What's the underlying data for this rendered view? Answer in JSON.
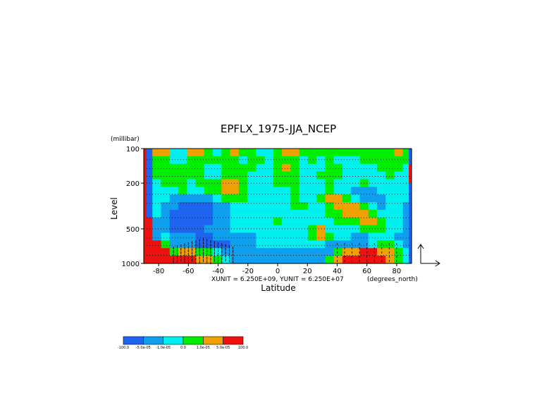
{
  "chart_data": {
    "type": "heatmap",
    "title": "EPFLX_1975-JJA_NCEP",
    "xlabel": "Latitude",
    "ylabel": "Level",
    "y_units": "(millibar)",
    "x_units": "(degrees_north)",
    "vector_units": "XUNIT = 6.250E+09, YUNIT = 6.250E+07",
    "xlim": [
      -90,
      90
    ],
    "ylim": [
      1000,
      100
    ],
    "y_scale": "log",
    "x_ticks": [
      {
        "value": -80,
        "label": "-80"
      },
      {
        "value": -60,
        "label": "-60"
      },
      {
        "value": -40,
        "label": "-40"
      },
      {
        "value": -20,
        "label": "-20"
      },
      {
        "value": 0,
        "label": "0"
      },
      {
        "value": 20,
        "label": "20"
      },
      {
        "value": 40,
        "label": "40"
      },
      {
        "value": 60,
        "label": "60"
      },
      {
        "value": 80,
        "label": "80"
      }
    ],
    "y_ticks": [
      {
        "value": 100,
        "label": "100"
      },
      {
        "value": 200,
        "label": "200"
      },
      {
        "value": 500,
        "label": "500"
      },
      {
        "value": 1000,
        "label": "1000"
      }
    ],
    "colorbar": {
      "labels": [
        "-100.0",
        "-5.0e-05",
        "-1.0e-05",
        "0.0",
        "1.0e-05",
        "5.0e-05",
        "100.0"
      ],
      "colors": [
        "#1e64f0",
        "#0ea0ee",
        "#00f0f0",
        "#00ee00",
        "#f0a000",
        "#f01010"
      ]
    },
    "z_grid": [
      [
        0,
        4,
        4,
        2,
        2,
        4,
        4,
        3,
        2,
        3,
        4,
        3,
        3,
        2,
        2,
        3,
        4,
        4,
        3,
        3,
        3,
        3,
        3,
        3,
        3,
        3,
        3,
        3,
        3,
        4,
        3
      ],
      [
        0,
        3,
        3,
        2,
        2,
        3,
        3,
        3,
        3,
        3,
        3,
        2,
        3,
        3,
        2,
        3,
        3,
        3,
        2,
        3,
        2,
        3,
        2,
        2,
        2,
        3,
        3,
        3,
        3,
        3,
        3
      ],
      [
        0,
        3,
        3,
        3,
        3,
        3,
        3,
        2,
        2,
        3,
        3,
        3,
        3,
        2,
        2,
        3,
        4,
        3,
        2,
        2,
        2,
        3,
        3,
        2,
        2,
        2,
        2,
        3,
        3,
        3,
        2
      ],
      [
        0,
        3,
        3,
        3,
        3,
        3,
        3,
        2,
        2,
        3,
        3,
        3,
        2,
        2,
        2,
        3,
        3,
        3,
        2,
        2,
        3,
        3,
        3,
        2,
        2,
        2,
        2,
        2,
        3,
        2,
        2
      ],
      [
        0,
        2,
        3,
        3,
        3,
        2,
        3,
        3,
        3,
        4,
        4,
        3,
        2,
        2,
        2,
        3,
        3,
        3,
        2,
        2,
        2,
        3,
        2,
        2,
        2,
        3,
        2,
        2,
        2,
        2,
        2
      ],
      [
        0,
        2,
        2,
        2,
        3,
        2,
        2,
        3,
        3,
        4,
        4,
        3,
        2,
        2,
        2,
        2,
        2,
        3,
        2,
        2,
        2,
        3,
        2,
        2,
        1,
        1,
        1,
        2,
        2,
        2,
        2
      ],
      [
        0,
        2,
        2,
        1,
        1,
        1,
        1,
        1,
        2,
        3,
        3,
        3,
        2,
        2,
        2,
        2,
        2,
        3,
        2,
        2,
        3,
        4,
        4,
        3,
        2,
        1,
        1,
        1,
        2,
        2,
        2
      ],
      [
        0,
        2,
        1,
        1,
        0,
        0,
        0,
        0,
        1,
        1,
        2,
        2,
        2,
        2,
        2,
        2,
        2,
        3,
        3,
        2,
        2,
        3,
        4,
        4,
        4,
        3,
        2,
        1,
        2,
        2,
        1
      ],
      [
        0,
        2,
        1,
        0,
        0,
        0,
        0,
        0,
        1,
        1,
        2,
        2,
        2,
        2,
        2,
        2,
        2,
        2,
        2,
        2,
        2,
        3,
        3,
        4,
        4,
        4,
        3,
        2,
        2,
        2,
        1
      ],
      [
        5,
        1,
        1,
        0,
        0,
        0,
        0,
        0,
        1,
        1,
        2,
        2,
        2,
        2,
        2,
        3,
        2,
        2,
        2,
        2,
        2,
        2,
        3,
        3,
        3,
        4,
        4,
        3,
        2,
        2,
        1
      ],
      [
        5,
        1,
        1,
        0,
        0,
        0,
        0,
        1,
        1,
        1,
        2,
        2,
        2,
        2,
        2,
        2,
        2,
        2,
        2,
        3,
        4,
        2,
        2,
        2,
        2,
        3,
        3,
        3,
        2,
        2,
        1
      ],
      [
        5,
        1,
        2,
        1,
        1,
        1,
        0,
        0,
        1,
        1,
        1,
        1,
        1,
        2,
        2,
        2,
        2,
        2,
        2,
        3,
        4,
        3,
        2,
        2,
        1,
        1,
        2,
        2,
        2,
        1,
        1
      ],
      [
        5,
        5,
        3,
        1,
        1,
        1,
        0,
        0,
        0,
        0,
        1,
        1,
        1,
        2,
        2,
        2,
        2,
        2,
        2,
        2,
        2,
        1,
        1,
        1,
        1,
        1,
        2,
        3,
        3,
        2,
        1
      ],
      [
        5,
        5,
        5,
        3,
        4,
        4,
        3,
        3,
        2,
        1,
        1,
        1,
        1,
        1,
        1,
        1,
        1,
        1,
        1,
        1,
        1,
        1,
        3,
        4,
        4,
        5,
        5,
        4,
        4,
        3,
        2
      ],
      [
        5,
        5,
        5,
        5,
        5,
        5,
        4,
        4,
        3,
        2,
        1,
        1,
        1,
        1,
        1,
        1,
        1,
        1,
        1,
        1,
        1,
        3,
        4,
        5,
        5,
        5,
        5,
        5,
        4,
        3,
        2
      ]
    ]
  }
}
